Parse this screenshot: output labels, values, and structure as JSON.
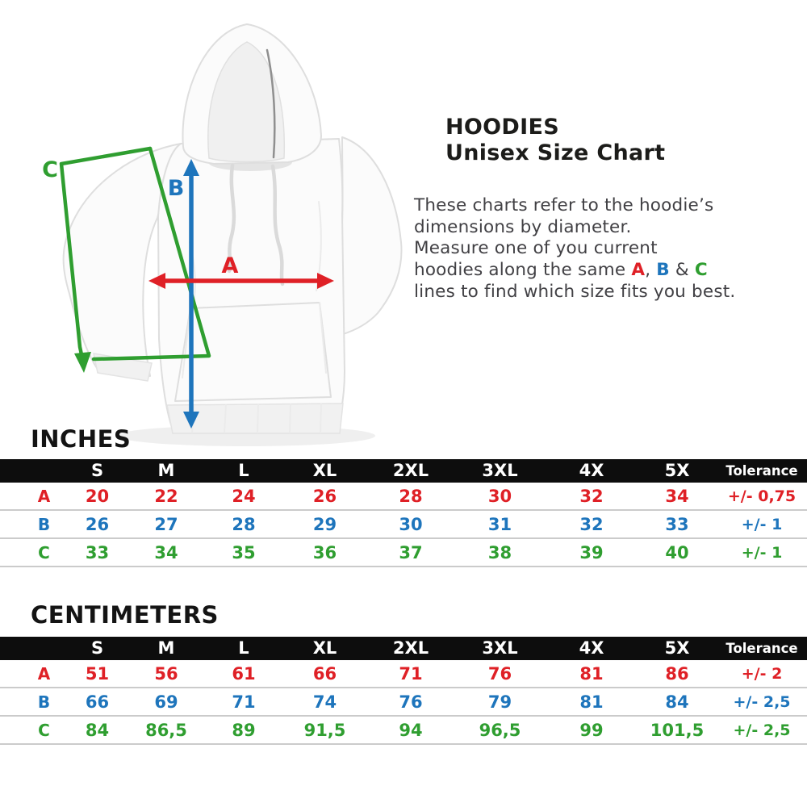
{
  "info": {
    "title_line1": "HOODIES",
    "title_line2": "Unisex Size Chart",
    "description_lines": [
      [
        {
          "t": "These charts refer to the hoodie’s"
        }
      ],
      [
        {
          "t": "dimensions by diameter."
        }
      ],
      [
        {
          "t": "Measure one of you current"
        }
      ],
      [
        {
          "t": "hoodies along the same "
        },
        {
          "t": "A",
          "c": "a"
        },
        {
          "t": ", "
        },
        {
          "t": "B",
          "c": "b"
        },
        {
          "t": " & "
        },
        {
          "t": "C",
          "c": "c"
        }
      ],
      [
        {
          "t": "lines to find which size fits you best."
        }
      ]
    ]
  },
  "diagram": {
    "labels": {
      "a": "A",
      "b": "B",
      "c": "C"
    }
  },
  "colors": {
    "a": "#df2026",
    "b": "#1e75bc",
    "c": "#2f9e30",
    "header_bg": "#0d0d0d",
    "header_text": "#ffffff"
  },
  "chart_data": [
    {
      "type": "table",
      "title": "INCHES",
      "columns": [
        "S",
        "M",
        "L",
        "XL",
        "2XL",
        "3XL",
        "4X",
        "5X",
        "Tolerance"
      ],
      "rows": [
        {
          "label": "A",
          "color": "a",
          "values": [
            "20",
            "22",
            "24",
            "26",
            "28",
            "30",
            "32",
            "34",
            "+/- 0,75"
          ]
        },
        {
          "label": "B",
          "color": "b",
          "values": [
            "26",
            "27",
            "28",
            "29",
            "30",
            "31",
            "32",
            "33",
            "+/- 1"
          ]
        },
        {
          "label": "C",
          "color": "c",
          "values": [
            "33",
            "34",
            "35",
            "36",
            "37",
            "38",
            "39",
            "40",
            "+/- 1"
          ]
        }
      ]
    },
    {
      "type": "table",
      "title": "CENTIMETERS",
      "columns": [
        "S",
        "M",
        "L",
        "XL",
        "2XL",
        "3XL",
        "4X",
        "5X",
        "Tolerance"
      ],
      "rows": [
        {
          "label": "A",
          "color": "a",
          "values": [
            "51",
            "56",
            "61",
            "66",
            "71",
            "76",
            "81",
            "86",
            "+/- 2"
          ]
        },
        {
          "label": "B",
          "color": "b",
          "values": [
            "66",
            "69",
            "71",
            "74",
            "76",
            "79",
            "81",
            "84",
            "+/- 2,5"
          ]
        },
        {
          "label": "C",
          "color": "c",
          "values": [
            "84",
            "86,5",
            "89",
            "91,5",
            "94",
            "96,5",
            "99",
            "101,5",
            "+/- 2,5"
          ]
        }
      ]
    }
  ]
}
